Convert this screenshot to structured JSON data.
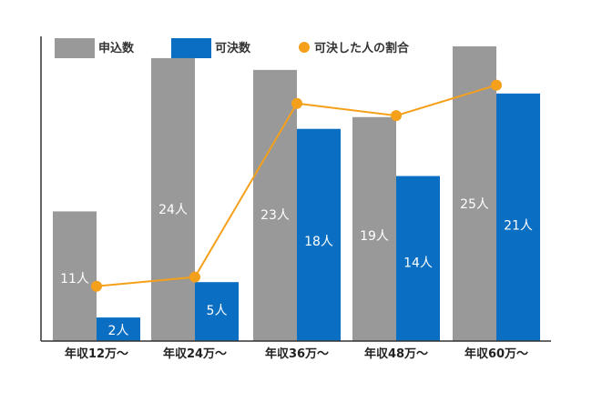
{
  "chart_data": {
    "type": "bar",
    "categories": [
      "年収12万～",
      "年収24万～",
      "年収36万～",
      "年収48万～",
      "年収60万～"
    ],
    "series": [
      {
        "name": "申込数",
        "kind": "bar",
        "color": "#999999",
        "values": [
          11,
          24,
          23,
          19,
          25
        ],
        "labels": [
          "11人",
          "24人",
          "23人",
          "19人",
          "25人"
        ]
      },
      {
        "name": "可決数",
        "kind": "bar",
        "color": "#0a6fc2",
        "values": [
          2,
          5,
          18,
          14,
          21
        ],
        "labels": [
          "2人",
          "5人",
          "18人",
          "14人",
          "21人"
        ]
      },
      {
        "name": "可決した人の割合",
        "kind": "line",
        "color": "#f5a01a",
        "values": [
          0.18,
          0.21,
          0.78,
          0.74,
          0.84
        ]
      }
    ],
    "ylim": [
      0,
      26
    ],
    "grid": false,
    "legend": "top"
  }
}
